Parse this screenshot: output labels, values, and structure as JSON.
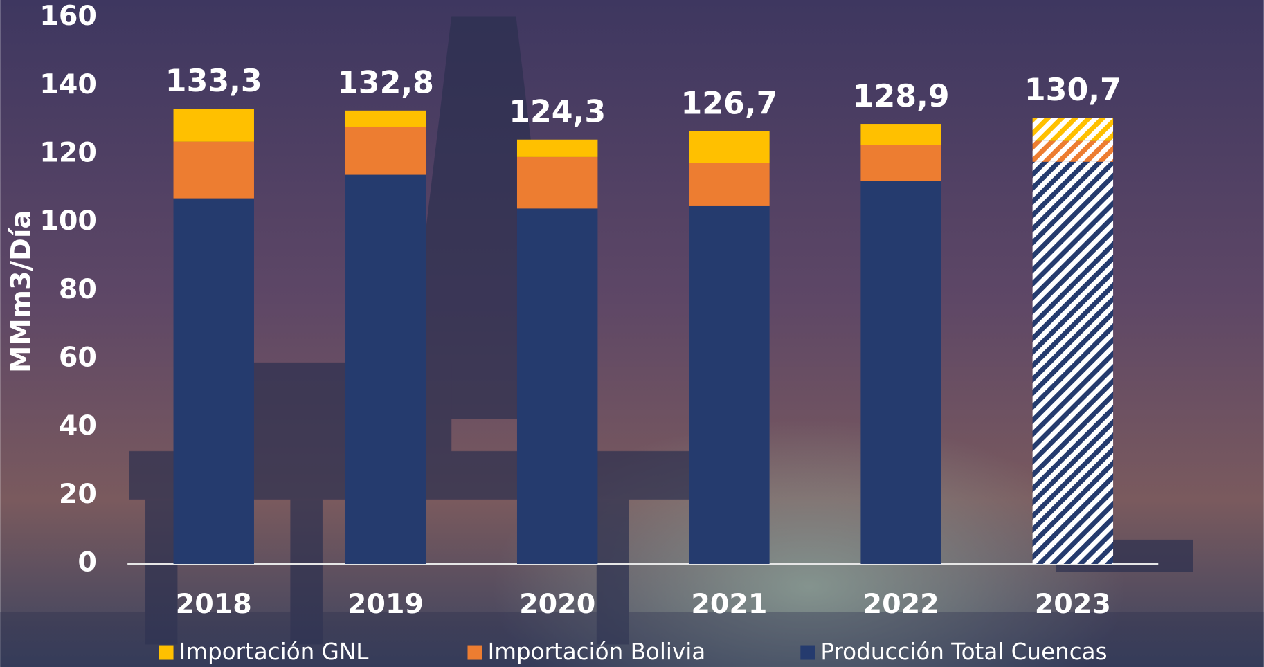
{
  "chart_data": {
    "type": "stacked-bar",
    "y_label": "MMm3/Día",
    "categories": [
      "2018",
      "2019",
      "2020",
      "2021",
      "2022",
      "2023"
    ],
    "series": [
      {
        "name": "Importación GNL",
        "color": "#ffc000",
        "values": [
          9.6,
          4.7,
          5.1,
          9.2,
          6.2,
          6.8
        ]
      },
      {
        "name": "Importación Bolivia",
        "color": "#ed7d31",
        "values": [
          16.6,
          14.1,
          15.1,
          12.7,
          10.6,
          6.1
        ]
      },
      {
        "name": "Producción Total Cuencas",
        "color": "#253b6e",
        "values": [
          107.1,
          114.0,
          104.1,
          104.8,
          112.1,
          117.8
        ]
      }
    ],
    "totals": [
      133.3,
      132.8,
      124.3,
      126.7,
      128.9,
      130.7
    ],
    "total_labels": [
      "133,3",
      "132,8",
      "124,3",
      "126,7",
      "128,9",
      "130,7"
    ],
    "hatched": [
      false,
      false,
      false,
      false,
      false,
      true
    ],
    "ylim": [
      0,
      160
    ],
    "yticks": [
      0,
      20,
      40,
      60,
      80,
      100,
      120,
      140,
      160
    ],
    "grid": false,
    "legend": "bottom"
  }
}
